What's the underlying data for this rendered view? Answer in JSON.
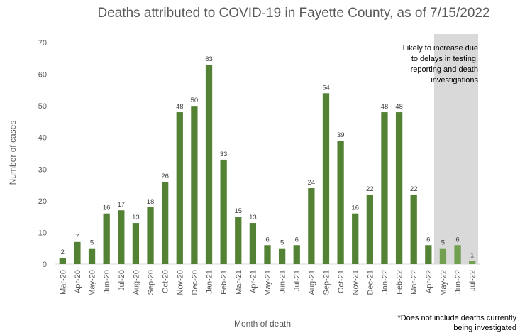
{
  "chart_data": {
    "type": "bar",
    "title": "Deaths attributed to COVID-19 in Fayette County, as of 7/15/2022",
    "xlabel": "Month of death",
    "ylabel": "Number of cases",
    "ylim": [
      0,
      70
    ],
    "yticks": [
      0,
      10,
      20,
      30,
      40,
      50,
      60,
      70
    ],
    "grid": false,
    "categories": [
      "Mar-20",
      "Apr-20",
      "May-20",
      "Jun-20",
      "Jul-20",
      "Aug-20",
      "Sep-20",
      "Oct-20",
      "Nov-20",
      "Dec-20",
      "Jan-21",
      "Feb-21",
      "Mar-21",
      "Apr-21",
      "May-21",
      "Jun-21",
      "Jul-21",
      "Aug-21",
      "Sep-21",
      "Oct-21",
      "Nov-21",
      "Dec-21",
      "Jan-22",
      "Feb-22",
      "Mar-22",
      "Apr-22",
      "May-22",
      "Jun-22",
      "Jul-22"
    ],
    "values": [
      2,
      7,
      5,
      16,
      17,
      13,
      18,
      26,
      48,
      50,
      63,
      33,
      15,
      13,
      6,
      5,
      6,
      24,
      54,
      39,
      16,
      22,
      48,
      48,
      22,
      6,
      5,
      6,
      1
    ],
    "bar_color": "#548235",
    "shaded_bar_color": "#70a050",
    "shaded_from_index": 26,
    "shade_color": "#d9d9d9",
    "annotation": "Likely to increase due\nto delays in testing,\nreporting and death\ninvestigations",
    "footnote": "*Does not include deaths currently\nbeing investigated"
  }
}
